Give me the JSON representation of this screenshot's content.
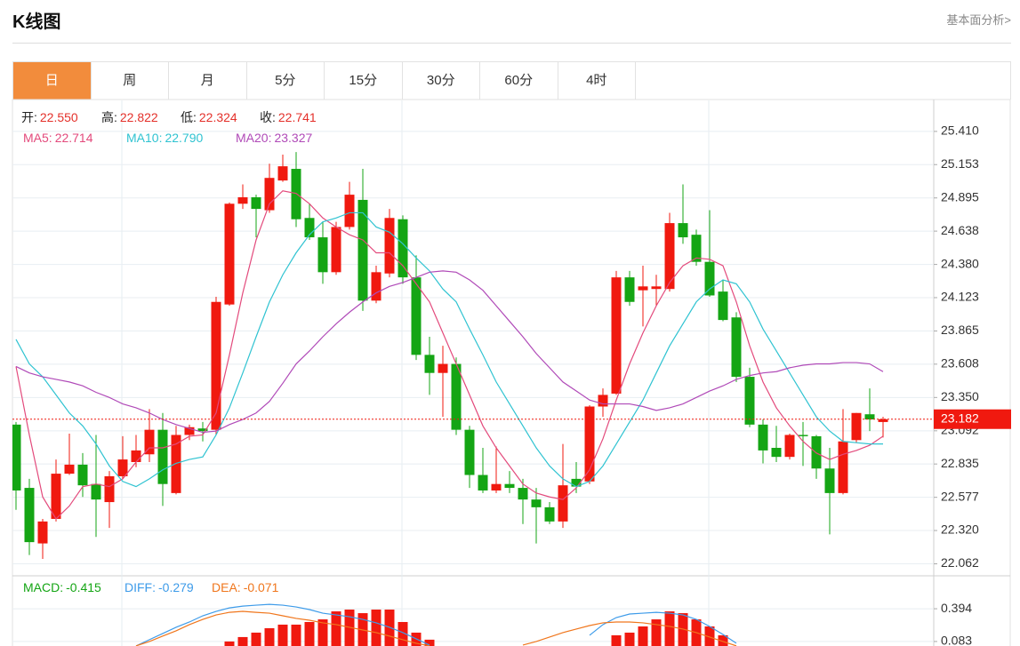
{
  "header": {
    "title": "K线图",
    "link": "基本面分析>"
  },
  "tabs": [
    "日",
    "周",
    "月",
    "5分",
    "15分",
    "30分",
    "60分",
    "4时"
  ],
  "active_tab": 0,
  "chart_data": [
    {
      "type": "candlestick",
      "info": [
        {
          "label": "开:",
          "value": "22.550"
        },
        {
          "label": "高:",
          "value": "22.822"
        },
        {
          "label": "低:",
          "value": "22.324"
        },
        {
          "label": "收:",
          "value": "22.741"
        }
      ],
      "categories": [
        null,
        null,
        null,
        null,
        null,
        null,
        null,
        null,
        null,
        null,
        null,
        null,
        null,
        null,
        null,
        null,
        null,
        null,
        null,
        null,
        null,
        null,
        null,
        null,
        null,
        null,
        null,
        null,
        null,
        null,
        null,
        null,
        null,
        null,
        null,
        null,
        null,
        null,
        null,
        null,
        null,
        null,
        null,
        null,
        null,
        null,
        null,
        null,
        null,
        null,
        null,
        null,
        null,
        null,
        null,
        null,
        null,
        null,
        null,
        null,
        null,
        null,
        null,
        null,
        null,
        null
      ],
      "open": [
        23.14,
        22.65,
        22.22,
        22.41,
        22.76,
        22.83,
        22.68,
        22.54,
        22.74,
        22.85,
        22.91,
        23.1,
        22.61,
        23.06,
        23.11,
        23.1,
        24.07,
        24.85,
        24.9,
        24.8,
        25.03,
        25.12,
        24.74,
        24.59,
        24.32,
        24.67,
        24.88,
        24.1,
        24.31,
        24.73,
        24.28,
        23.68,
        23.54,
        23.61,
        23.1,
        22.75,
        22.63,
        22.68,
        22.65,
        22.56,
        22.5,
        22.39,
        22.72,
        22.7,
        23.28,
        23.38,
        24.28,
        24.18,
        24.19,
        24.19,
        24.7,
        24.61,
        24.4,
        24.17,
        23.97,
        23.51,
        23.14,
        22.96,
        22.89,
        23.06,
        23.05,
        22.8,
        22.61,
        23.02,
        23.22,
        23.16
      ],
      "high": [
        23.16,
        22.72,
        22.41,
        22.87,
        23.07,
        22.92,
        23.06,
        22.78,
        23.05,
        23.06,
        23.26,
        23.23,
        23.13,
        23.14,
        23.16,
        24.13,
        24.86,
        25.0,
        24.92,
        25.16,
        25.23,
        25.25,
        24.85,
        24.71,
        24.71,
        25.02,
        25.12,
        24.37,
        24.81,
        24.76,
        24.45,
        23.82,
        23.75,
        23.66,
        23.13,
        22.96,
        22.97,
        22.78,
        22.72,
        22.65,
        22.54,
        22.99,
        22.85,
        23.29,
        23.42,
        24.33,
        24.33,
        24.37,
        24.3,
        24.78,
        25.0,
        24.65,
        24.8,
        24.26,
        24.01,
        23.58,
        23.18,
        23.13,
        23.07,
        23.16,
        23.06,
        22.96,
        23.26,
        23.23,
        23.42,
        23.2
      ],
      "low": [
        22.48,
        22.13,
        22.1,
        22.39,
        22.75,
        22.58,
        22.27,
        22.34,
        22.72,
        22.81,
        22.85,
        22.51,
        22.6,
        23.02,
        23.01,
        23.06,
        24.06,
        24.81,
        24.59,
        24.78,
        25.02,
        24.67,
        24.57,
        24.23,
        24.3,
        24.65,
        24.02,
        24.08,
        24.28,
        24.23,
        23.64,
        23.37,
        23.2,
        23.06,
        22.65,
        22.61,
        22.61,
        22.61,
        22.37,
        22.22,
        22.37,
        22.34,
        22.61,
        22.68,
        23.2,
        23.37,
        24.06,
        23.9,
        24.06,
        24.17,
        24.54,
        24.37,
        24.13,
        23.94,
        23.47,
        23.12,
        22.84,
        22.85,
        22.87,
        22.82,
        22.72,
        22.29,
        22.6,
        23.0,
        23.09,
        23.04
      ],
      "close": [
        22.63,
        22.23,
        22.39,
        22.76,
        22.83,
        22.67,
        22.56,
        22.74,
        22.87,
        22.94,
        23.1,
        22.68,
        23.06,
        23.12,
        23.09,
        24.09,
        24.85,
        24.9,
        24.81,
        25.05,
        25.14,
        24.73,
        24.59,
        24.32,
        24.67,
        24.92,
        24.1,
        24.32,
        24.74,
        24.28,
        23.68,
        23.54,
        23.61,
        23.1,
        22.75,
        22.63,
        22.68,
        22.65,
        22.56,
        22.5,
        22.39,
        22.67,
        22.66,
        23.28,
        23.37,
        24.28,
        24.09,
        24.21,
        24.21,
        24.7,
        24.59,
        24.4,
        24.14,
        23.95,
        23.51,
        23.14,
        22.94,
        22.89,
        23.06,
        23.05,
        22.8,
        22.61,
        23.01,
        23.23,
        23.18,
        23.182
      ],
      "up_color": "#f0190f",
      "down_color": "#14a514",
      "series": [
        {
          "name": "MA5:",
          "value_now": "22.714",
          "color": "#e34a7c",
          "values": [
            23.59,
            23.06,
            22.58,
            22.41,
            22.51,
            22.66,
            22.68,
            22.66,
            22.72,
            22.85,
            22.96,
            22.96,
            22.99,
            23.05,
            23.06,
            23.23,
            23.68,
            24.16,
            24.57,
            24.85,
            24.95,
            24.93,
            24.85,
            24.74,
            24.67,
            24.61,
            24.57,
            24.47,
            24.47,
            24.37,
            24.23,
            24.09,
            23.85,
            23.61,
            23.37,
            23.13,
            22.96,
            22.82,
            22.68,
            22.61,
            22.58,
            22.56,
            22.65,
            22.79,
            23.03,
            23.33,
            23.61,
            23.85,
            24.06,
            24.24,
            24.37,
            24.43,
            24.42,
            24.37,
            24.09,
            23.75,
            23.47,
            23.27,
            23.13,
            23.01,
            22.92,
            22.87,
            22.91,
            22.94,
            22.98,
            23.05
          ]
        },
        {
          "name": "MA10:",
          "value_now": "22.790",
          "color": "#2fc3d1",
          "values": [
            23.8,
            23.61,
            23.51,
            23.37,
            23.23,
            23.13,
            22.99,
            22.82,
            22.7,
            22.66,
            22.72,
            22.79,
            22.84,
            22.87,
            22.89,
            23.06,
            23.27,
            23.54,
            23.82,
            24.09,
            24.3,
            24.47,
            24.61,
            24.71,
            24.74,
            24.78,
            24.78,
            24.67,
            24.63,
            24.54,
            24.43,
            24.33,
            24.19,
            24.09,
            23.88,
            23.68,
            23.47,
            23.3,
            23.13,
            22.96,
            22.82,
            22.72,
            22.66,
            22.7,
            22.82,
            22.99,
            23.16,
            23.33,
            23.54,
            23.75,
            23.92,
            24.09,
            24.19,
            24.26,
            24.23,
            24.09,
            23.88,
            23.71,
            23.54,
            23.37,
            23.2,
            23.09,
            23.01,
            23.0,
            22.99,
            22.99
          ]
        },
        {
          "name": "MA20:",
          "value_now": "23.327",
          "color": "#b04ab8",
          "values": [
            23.59,
            23.54,
            23.51,
            23.49,
            23.47,
            23.44,
            23.39,
            23.35,
            23.3,
            23.27,
            23.23,
            23.18,
            23.14,
            23.11,
            23.08,
            23.09,
            23.14,
            23.18,
            23.23,
            23.32,
            23.46,
            23.61,
            23.71,
            23.82,
            23.92,
            24.01,
            24.09,
            24.16,
            24.21,
            24.24,
            24.28,
            24.32,
            24.33,
            24.32,
            24.26,
            24.18,
            24.06,
            23.94,
            23.82,
            23.69,
            23.58,
            23.47,
            23.4,
            23.33,
            23.3,
            23.3,
            23.3,
            23.28,
            23.25,
            23.27,
            23.3,
            23.35,
            23.4,
            23.44,
            23.49,
            23.52,
            23.54,
            23.55,
            23.58,
            23.6,
            23.61,
            23.61,
            23.62,
            23.62,
            23.61,
            23.55
          ]
        }
      ],
      "last_price": 23.182,
      "ylim": [
        21.99,
        25.65
      ],
      "yticks": [
        {
          "value": 25.41,
          "label": "25.410"
        },
        25.153,
        24.895,
        24.638,
        {
          "value": 24.38,
          "label": "24.380"
        },
        24.123,
        23.865,
        23.608,
        {
          "value": 23.35,
          "label": "23.350"
        },
        23.092,
        22.835,
        22.577,
        {
          "value": 22.32,
          "label": "22.320"
        },
        22.062
      ],
      "grid": true
    },
    {
      "type": "macd",
      "ylim": [
        0.04,
        0.69
      ],
      "yticks": [
        0.394,
        0.083
      ],
      "grid": true,
      "bars": {
        "name": "MACD:",
        "value_now": "-0.415",
        "color": "#f0190f",
        "legend_color": "#14a514",
        "values": [
          null,
          null,
          null,
          null,
          null,
          null,
          null,
          null,
          null,
          null,
          null,
          null,
          null,
          null,
          null,
          null,
          0.083,
          0.125,
          0.167,
          0.209,
          0.243,
          0.243,
          0.268,
          0.293,
          0.369,
          0.386,
          0.352,
          0.386,
          0.386,
          0.268,
          0.167,
          0.1,
          null,
          null,
          null,
          null,
          null,
          null,
          null,
          null,
          null,
          null,
          null,
          null,
          null,
          0.142,
          0.167,
          0.226,
          0.293,
          0.369,
          0.352,
          0.293,
          0.226,
          0.142,
          null,
          null,
          null,
          null,
          null,
          null,
          null,
          null,
          null,
          null,
          null,
          null
        ]
      },
      "series": [
        {
          "name": "DIFF:",
          "value_now": "-0.279",
          "color": "#3d9be9",
          "values": [
            null,
            null,
            null,
            null,
            null,
            null,
            null,
            null,
            null,
            0.041,
            0.1,
            0.159,
            0.218,
            0.268,
            0.327,
            0.369,
            0.402,
            0.419,
            0.428,
            0.436,
            0.428,
            0.411,
            0.386,
            0.352,
            0.335,
            0.318,
            0.293,
            0.26,
            0.218,
            0.167,
            0.108,
            0.049,
            null,
            null,
            null,
            null,
            null,
            null,
            null,
            null,
            null,
            null,
            null,
            0.142,
            0.243,
            0.31,
            0.344,
            0.352,
            0.36,
            0.352,
            0.335,
            0.293,
            0.226,
            0.15,
            0.066,
            null,
            null,
            null,
            null,
            null,
            null,
            null,
            null,
            null,
            null,
            null
          ]
        },
        {
          "name": "DEA:",
          "value_now": "-0.071",
          "color": "#f0761c",
          "values": [
            null,
            null,
            null,
            null,
            null,
            null,
            null,
            null,
            null,
            0.041,
            0.083,
            0.134,
            0.184,
            0.243,
            0.293,
            0.335,
            0.36,
            0.369,
            0.36,
            0.352,
            0.327,
            0.302,
            0.285,
            0.26,
            0.243,
            0.218,
            0.192,
            0.167,
            0.134,
            0.1,
            0.066,
            0.041,
            null,
            null,
            null,
            null,
            null,
            null,
            0.049,
            0.083,
            0.125,
            0.167,
            0.201,
            0.234,
            0.26,
            0.268,
            0.268,
            0.26,
            0.243,
            0.226,
            0.201,
            0.167,
            0.125,
            0.083,
            0.041,
            null,
            null,
            null,
            null,
            null,
            null,
            null,
            null,
            null,
            null,
            null
          ]
        }
      ]
    }
  ]
}
